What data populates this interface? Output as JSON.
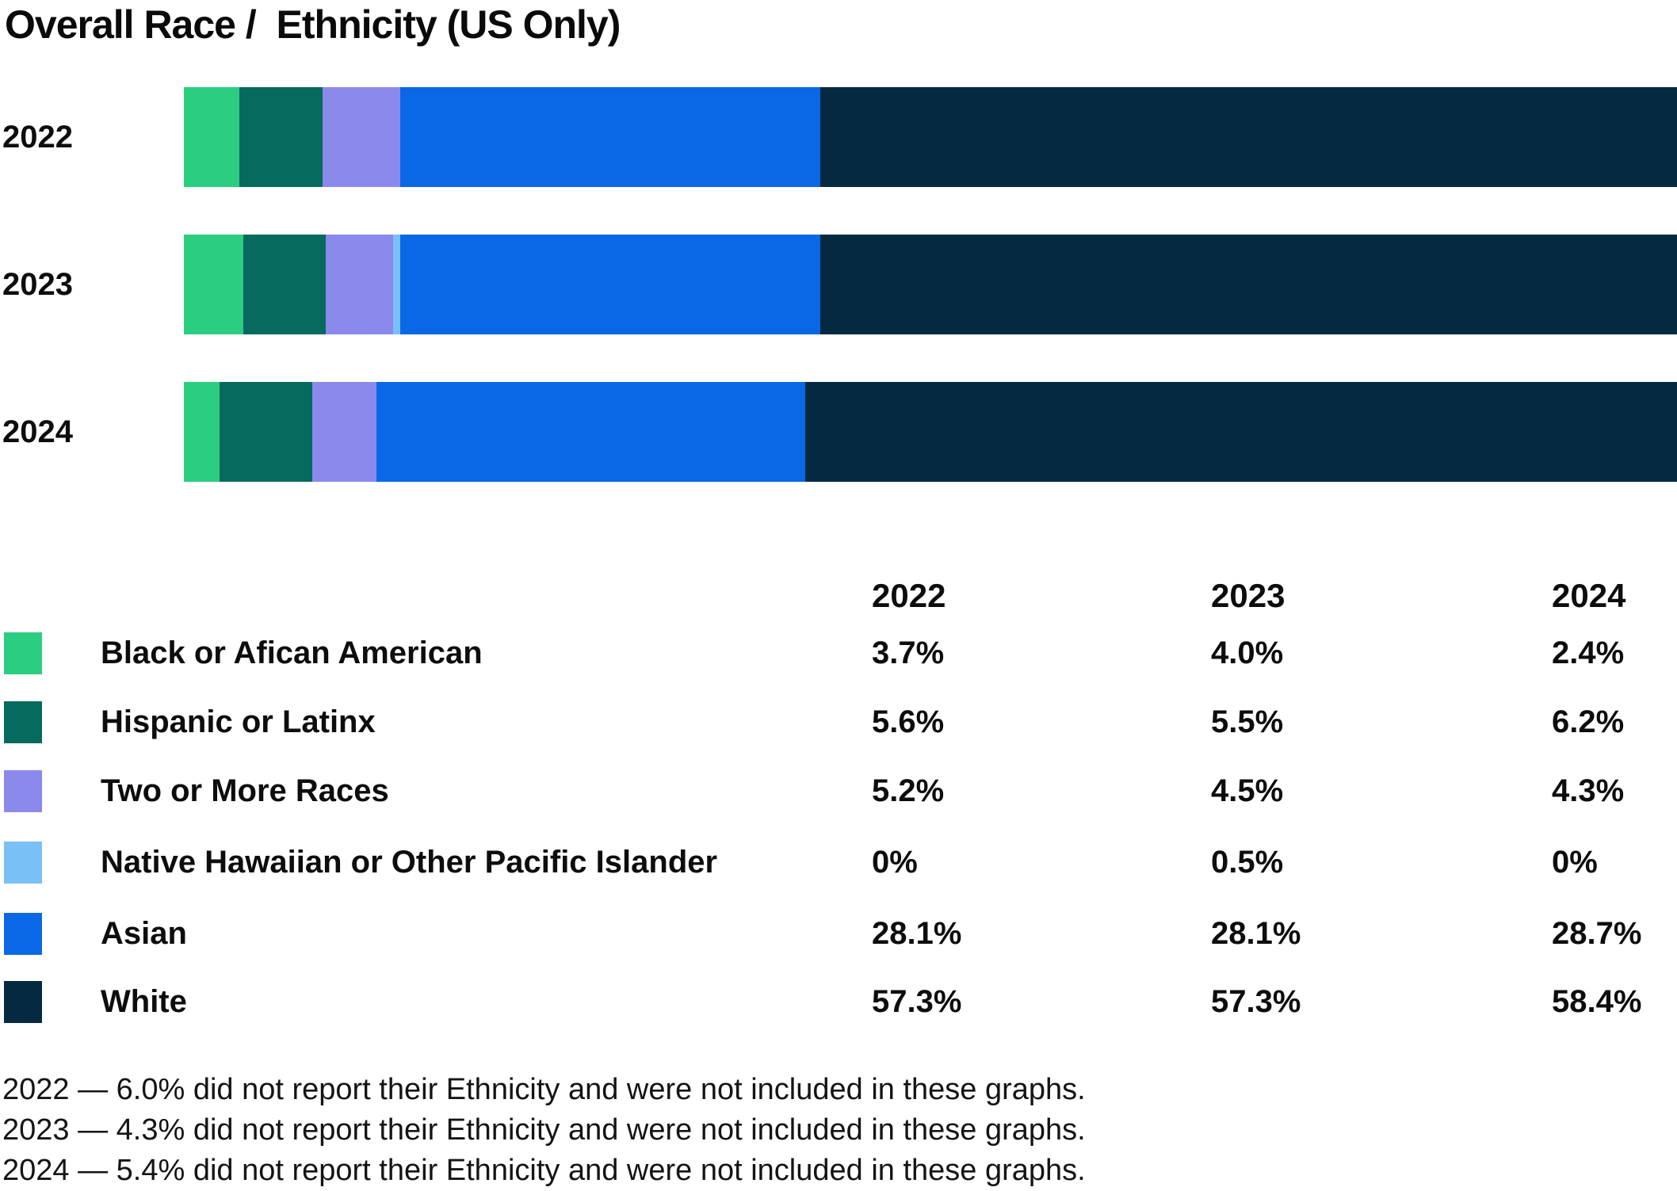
{
  "title": "Overall Race /  Ethnicity (US Only)",
  "colors": {
    "green": "#2BCE80",
    "teal": "#076A5E",
    "purple": "#8B8AEC",
    "light_blue": "#79C0F7",
    "blue": "#0A68E6",
    "navy": "#052A40"
  },
  "chart_data": {
    "type": "bar",
    "stacked": true,
    "orientation": "horizontal",
    "unit": "percent",
    "title": "Overall Race /  Ethnicity (US Only)",
    "categories": [
      "2022",
      "2023",
      "2024"
    ],
    "series": [
      {
        "name": "Black or Afican American",
        "color": "green",
        "values": [
          3.7,
          4.0,
          2.4
        ]
      },
      {
        "name": "Hispanic or Latinx",
        "color": "teal",
        "values": [
          5.6,
          5.5,
          6.2
        ]
      },
      {
        "name": "Two or More Races",
        "color": "purple",
        "values": [
          5.2,
          4.5,
          4.3
        ]
      },
      {
        "name": "Native Hawaiian or Other Pacific Islander",
        "color": "light_blue",
        "values": [
          0,
          0.5,
          0
        ]
      },
      {
        "name": "Asian",
        "color": "blue",
        "values": [
          28.1,
          28.1,
          28.7
        ]
      },
      {
        "name": "White",
        "color": "navy",
        "values": [
          57.3,
          57.3,
          58.4
        ]
      }
    ],
    "legend_position": "bottom-table",
    "grid": false,
    "axis_labels_hidden": true
  },
  "table": {
    "columns": [
      "2022",
      "2023",
      "2024"
    ],
    "rows": [
      {
        "label": "Black or Afican American",
        "color": "green",
        "values": [
          "3.7%",
          "4.0%",
          "2.4%"
        ]
      },
      {
        "label": "Hispanic or Latinx",
        "color": "teal",
        "values": [
          "5.6%",
          "5.5%",
          "6.2%"
        ]
      },
      {
        "label": "Two or More Races",
        "color": "purple",
        "values": [
          "5.2%",
          "4.5%",
          "4.3%"
        ]
      },
      {
        "label": "Native Hawaiian or Other Pacific Islander",
        "color": "light_blue",
        "values": [
          "0%",
          "0.5%",
          "0%"
        ]
      },
      {
        "label": "Asian",
        "color": "blue",
        "values": [
          "28.1%",
          "28.1%",
          "28.7%"
        ]
      },
      {
        "label": "White",
        "color": "navy",
        "values": [
          "57.3%",
          "57.3%",
          "58.4%"
        ]
      }
    ]
  },
  "footnotes": [
    "2022 — 6.0% did not report their Ethnicity and were not included in these graphs.",
    "2023 — 4.3% did not report their Ethnicity and were not included in these graphs.",
    "2024 — 5.4% did not report their Ethnicity and were not included in these graphs."
  ]
}
